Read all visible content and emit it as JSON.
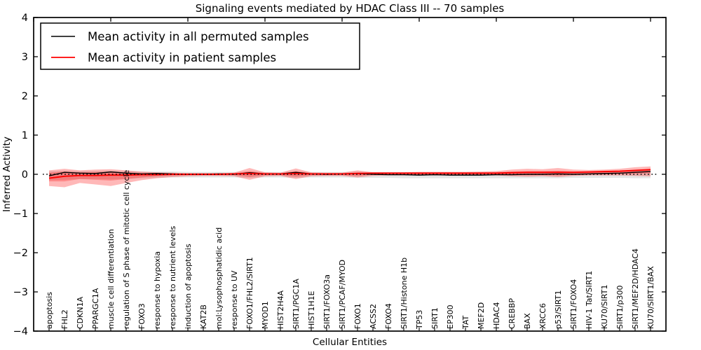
{
  "chart_data": {
    "type": "line",
    "title": "Signaling events mediated by HDAC Class III -- 70 samples",
    "xlabel": "Cellular Entities",
    "ylabel": "Inferred Activity",
    "ylim": [
      -4,
      4
    ],
    "yticks": [
      -4,
      -3,
      -2,
      -1,
      0,
      1,
      2,
      3,
      4
    ],
    "grid": false,
    "colors": {
      "permuted_line": "#000000",
      "patient_line": "#ff0000",
      "permuted_band": "#000000",
      "permuted_band_opacity": 0.1,
      "patient_band": "#ff0000",
      "patient_band_outer_opacity": 0.28,
      "patient_band_inner_opacity": 0.25,
      "zero_line": "#000000",
      "frame": "#000000"
    },
    "legend": {
      "position": "upper left",
      "entries": [
        {
          "label": "Mean activity in all permuted samples",
          "color": "#000000"
        },
        {
          "label": "Mean activity in patient samples",
          "color": "#ff0000"
        }
      ]
    },
    "zero_line": {
      "style": "dotted",
      "y": 0
    },
    "categories": [
      "apoptosis",
      "FHL2",
      "CDKN1A",
      "PPARGC1A",
      "muscle cell differentiation",
      "regulation of S phase of mitotic cell cycle",
      "FOXO3",
      "response to hypoxia",
      "response to nutrient levels",
      "induction of apoptosis",
      "KAT2B",
      "mol:Lysophosphatidic acid",
      "response to UV",
      "FOXO1/FHL2/SIRT1",
      "MYOD1",
      "HIST2H4A",
      "SIRT1/PGC1A",
      "HIST1H1E",
      "SIRT1/FOXO3a",
      "SIRT1/PCAF/MYOD",
      "FOXO1",
      "ACSS2",
      "FOXO4",
      "SIRT1/Histone H1b",
      "TP53",
      "SIRT1",
      "EP300",
      "TAT",
      "MEF2D",
      "HDAC4",
      "CREBBP",
      "BAX",
      "XRCC6",
      "p53/SIRT1",
      "SIRT1/FOXO4",
      "HIV-1 Tat/SIRT1",
      "KU70/SIRT1",
      "SIRT1/p300",
      "SIRT1/MEF2D/HDAC4",
      "KU70/SIRT1/BAX"
    ],
    "series": [
      {
        "name": "Mean activity in all permuted samples",
        "kind": "line",
        "values": [
          -0.04,
          0.05,
          0.03,
          0.02,
          0.06,
          0.03,
          0.01,
          0.02,
          0.01,
          0.0,
          0.0,
          0.01,
          0.0,
          0.04,
          0.01,
          0.01,
          0.05,
          0.01,
          0.0,
          0.01,
          0.02,
          0.0,
          -0.01,
          -0.01,
          -0.02,
          -0.01,
          -0.02,
          -0.02,
          -0.02,
          -0.01,
          -0.01,
          0.0,
          0.0,
          0.01,
          0.0,
          0.01,
          0.02,
          0.03,
          0.05,
          0.07
        ]
      },
      {
        "name": "Mean activity in patient samples",
        "kind": "line",
        "values": [
          -0.1,
          -0.05,
          -0.03,
          -0.03,
          -0.02,
          -0.02,
          -0.01,
          -0.01,
          0.0,
          0.0,
          0.0,
          0.0,
          0.01,
          0.02,
          0.01,
          0.01,
          0.02,
          0.01,
          0.01,
          0.01,
          0.02,
          0.03,
          0.03,
          0.03,
          0.03,
          0.03,
          0.03,
          0.03,
          0.03,
          0.03,
          0.04,
          0.05,
          0.05,
          0.05,
          0.05,
          0.06,
          0.07,
          0.08,
          0.1,
          0.12
        ]
      },
      {
        "name": "Permuted samples range",
        "kind": "band",
        "upper": [
          0.08,
          0.09,
          0.08,
          0.08,
          0.09,
          0.08,
          0.07,
          0.07,
          0.07,
          0.06,
          0.06,
          0.06,
          0.06,
          0.07,
          0.06,
          0.06,
          0.07,
          0.06,
          0.06,
          0.06,
          0.07,
          0.06,
          0.06,
          0.06,
          0.06,
          0.06,
          0.06,
          0.06,
          0.06,
          0.06,
          0.07,
          0.07,
          0.07,
          0.08,
          0.07,
          0.07,
          0.08,
          0.08,
          0.09,
          0.1
        ],
        "lower": [
          -0.15,
          -0.14,
          -0.12,
          -0.12,
          -0.13,
          -0.12,
          -0.1,
          -0.09,
          -0.08,
          -0.08,
          -0.08,
          -0.08,
          -0.08,
          -0.09,
          -0.08,
          -0.08,
          -0.09,
          -0.08,
          -0.08,
          -0.08,
          -0.09,
          -0.09,
          -0.09,
          -0.1,
          -0.1,
          -0.1,
          -0.1,
          -0.1,
          -0.1,
          -0.1,
          -0.1,
          -0.1,
          -0.1,
          -0.1,
          -0.09,
          -0.09,
          -0.09,
          -0.09,
          -0.1,
          -0.1
        ]
      },
      {
        "name": "Patient samples outer band",
        "kind": "band",
        "upper": [
          0.1,
          0.14,
          0.1,
          0.12,
          0.13,
          0.1,
          0.07,
          0.05,
          0.04,
          0.03,
          0.03,
          0.03,
          0.04,
          0.16,
          0.05,
          0.04,
          0.15,
          0.05,
          0.04,
          0.04,
          0.1,
          0.05,
          0.05,
          0.05,
          0.06,
          0.06,
          0.06,
          0.06,
          0.07,
          0.08,
          0.12,
          0.14,
          0.13,
          0.16,
          0.12,
          0.11,
          0.12,
          0.14,
          0.18,
          0.2
        ],
        "lower": [
          -0.3,
          -0.33,
          -0.22,
          -0.26,
          -0.3,
          -0.22,
          -0.15,
          -0.1,
          -0.07,
          -0.05,
          -0.04,
          -0.04,
          -0.05,
          -0.14,
          -0.05,
          -0.04,
          -0.12,
          -0.05,
          -0.04,
          -0.04,
          -0.08,
          -0.04,
          -0.03,
          -0.03,
          -0.03,
          -0.03,
          -0.03,
          -0.03,
          -0.03,
          -0.03,
          -0.05,
          -0.06,
          -0.05,
          -0.07,
          -0.04,
          -0.03,
          -0.03,
          -0.03,
          -0.04,
          -0.05
        ]
      },
      {
        "name": "Patient samples inner band",
        "kind": "band",
        "upper": [
          0.04,
          0.07,
          0.05,
          0.06,
          0.06,
          0.05,
          0.03,
          0.03,
          0.02,
          0.02,
          0.02,
          0.02,
          0.02,
          0.08,
          0.03,
          0.02,
          0.08,
          0.03,
          0.02,
          0.02,
          0.05,
          0.03,
          0.04,
          0.04,
          0.04,
          0.04,
          0.04,
          0.04,
          0.04,
          0.05,
          0.07,
          0.08,
          0.08,
          0.09,
          0.07,
          0.07,
          0.08,
          0.09,
          0.11,
          0.13
        ],
        "lower": [
          -0.18,
          -0.18,
          -0.12,
          -0.14,
          -0.16,
          -0.12,
          -0.08,
          -0.05,
          -0.03,
          -0.02,
          -0.02,
          -0.02,
          -0.02,
          -0.07,
          -0.02,
          -0.02,
          -0.06,
          -0.02,
          -0.02,
          -0.02,
          -0.04,
          -0.01,
          -0.01,
          -0.01,
          -0.01,
          -0.01,
          -0.01,
          -0.01,
          -0.01,
          -0.01,
          -0.02,
          -0.02,
          -0.02,
          -0.03,
          -0.01,
          0.0,
          0.0,
          0.01,
          0.02,
          0.03
        ]
      }
    ]
  }
}
